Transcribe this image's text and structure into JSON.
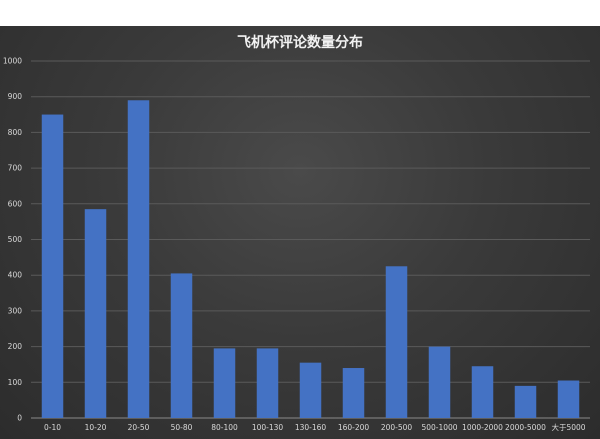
{
  "chart_data": {
    "type": "bar",
    "title": "飞机杯评论数量分布",
    "categories": [
      "0-10",
      "10-20",
      "20-50",
      "50-80",
      "80-100",
      "100-130",
      "130-160",
      "160-200",
      "200-500",
      "500-1000",
      "1000-2000",
      "2000-5000",
      "大于5000"
    ],
    "values": [
      850,
      585,
      890,
      405,
      195,
      195,
      155,
      140,
      425,
      200,
      145,
      90,
      105
    ],
    "ylim": [
      0,
      1000
    ],
    "yticks": [
      0,
      100,
      200,
      300,
      400,
      500,
      600,
      700,
      800,
      900,
      1000
    ],
    "grid": true,
    "legend": "none",
    "bar_color": "#4472c4",
    "background_color": "#3a3a3a"
  }
}
